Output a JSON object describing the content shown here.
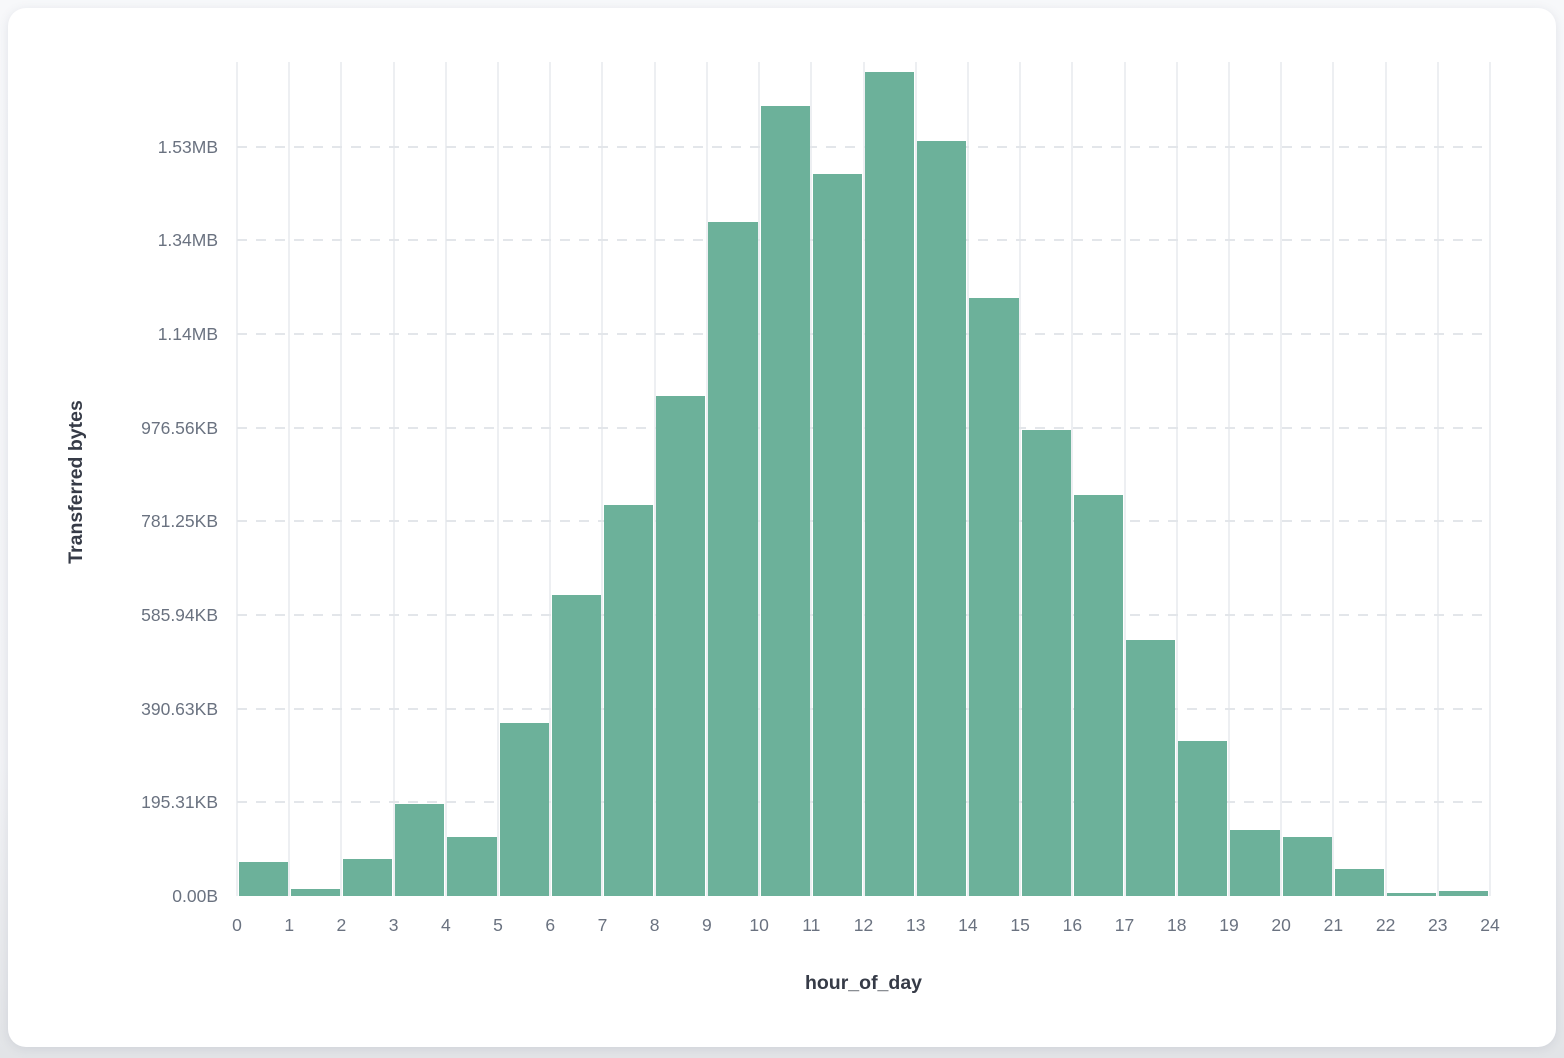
{
  "colors": {
    "bar": "#6CB19A",
    "v_grid": "#EDEFF2",
    "h_grid": "#E3E6EA",
    "tick_text": "#6A7280",
    "axis_title_text": "#363B47",
    "card_bg": "#FFFFFF",
    "page_bg_top": "#F7F8FA",
    "page_bg_bottom": "#E2E4E7"
  },
  "chart_data": {
    "type": "bar",
    "title": "",
    "xlabel": "hour_of_day",
    "ylabel": "Transferred bytes",
    "categories": [
      0,
      1,
      2,
      3,
      4,
      5,
      6,
      7,
      8,
      9,
      10,
      11,
      12,
      13,
      14,
      15,
      16,
      17,
      18,
      19,
      20,
      21,
      22,
      23
    ],
    "values": [
      72000,
      15500,
      78500,
      196500,
      125500,
      369000,
      643000,
      835500,
      1067000,
      1440000,
      1687500,
      1541500,
      1760500,
      1612000,
      1277000,
      996000,
      855500,
      547000,
      332000,
      141000,
      126500,
      57000,
      5800,
      11400
    ],
    "values_unit": "bytes",
    "x_tick_labels": [
      "0",
      "1",
      "2",
      "3",
      "4",
      "5",
      "6",
      "7",
      "8",
      "9",
      "10",
      "11",
      "12",
      "13",
      "14",
      "15",
      "16",
      "17",
      "18",
      "19",
      "20",
      "21",
      "22",
      "23",
      "24"
    ],
    "y_ticks": [
      {
        "value": 0,
        "label": "0.00B"
      },
      {
        "value": 200000,
        "label": "195.31KB"
      },
      {
        "value": 400000,
        "label": "390.63KB"
      },
      {
        "value": 600000,
        "label": "585.94KB"
      },
      {
        "value": 800000,
        "label": "781.25KB"
      },
      {
        "value": 1000000,
        "label": "976.56KB"
      },
      {
        "value": 1200000,
        "label": "1.14MB"
      },
      {
        "value": 1400000,
        "label": "1.34MB"
      },
      {
        "value": 1600000,
        "label": "1.53MB"
      }
    ],
    "xlim": [
      0,
      24
    ],
    "ylim": [
      0,
      1781000
    ],
    "grid": {
      "vertical": "solid",
      "horizontal": "dashed"
    },
    "legend": "none"
  }
}
